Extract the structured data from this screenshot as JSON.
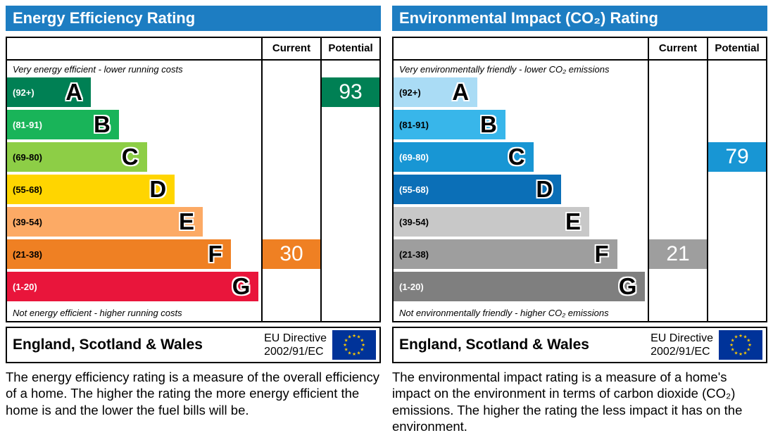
{
  "colors": {
    "header_bg": "#1d7dc2",
    "header_text": "#ffffff",
    "border": "#000000",
    "eu_flag_bg": "#003399",
    "eu_star": "#ffcc00"
  },
  "chart_data": [
    {
      "type": "bar",
      "title": "Energy Efficiency Rating",
      "columns": {
        "current_label": "Current",
        "potential_label": "Potential"
      },
      "caption_top": "Very energy efficient - lower running costs",
      "caption_bottom": "Not energy efficient - higher running costs",
      "bands": [
        {
          "letter": "A",
          "range": "(92+)",
          "color": "#008054",
          "width_pct": 33,
          "range_text_color": "#ffffff"
        },
        {
          "letter": "B",
          "range": "(81-91)",
          "color": "#19b459",
          "width_pct": 44,
          "range_text_color": "#ffffff"
        },
        {
          "letter": "C",
          "range": "(69-80)",
          "color": "#8dce46",
          "width_pct": 55,
          "range_text_color": "#000000"
        },
        {
          "letter": "D",
          "range": "(55-68)",
          "color": "#ffd500",
          "width_pct": 66,
          "range_text_color": "#000000"
        },
        {
          "letter": "E",
          "range": "(39-54)",
          "color": "#fcaa65",
          "width_pct": 77,
          "range_text_color": "#000000"
        },
        {
          "letter": "F",
          "range": "(21-38)",
          "color": "#ef8023",
          "width_pct": 88,
          "range_text_color": "#000000"
        },
        {
          "letter": "G",
          "range": "(1-20)",
          "color": "#e9153b",
          "width_pct": 99,
          "range_text_color": "#ffffff"
        }
      ],
      "current": {
        "value": "30",
        "band": "F"
      },
      "potential": {
        "value": "93",
        "band": "A"
      },
      "footer": {
        "region": "England, Scotland & Wales",
        "directive_line1": "EU Directive",
        "directive_line2": "2002/91/EC"
      },
      "description": "The energy efficiency rating is a measure of the overall efficiency of a home. The higher the rating the more energy efficient the home is and the lower the fuel bills will be."
    },
    {
      "type": "bar",
      "title": "Environmental Impact (CO₂) Rating",
      "columns": {
        "current_label": "Current",
        "potential_label": "Potential"
      },
      "caption_top": "Very environmentally friendly - lower CO₂ emissions",
      "caption_bottom": "Not environmentally friendly - higher CO₂ emissions",
      "bands": [
        {
          "letter": "A",
          "range": "(92+)",
          "color": "#aadcf5",
          "width_pct": 33,
          "range_text_color": "#000000"
        },
        {
          "letter": "B",
          "range": "(81-91)",
          "color": "#38b6ea",
          "width_pct": 44,
          "range_text_color": "#000000"
        },
        {
          "letter": "C",
          "range": "(69-80)",
          "color": "#1896d4",
          "width_pct": 55,
          "range_text_color": "#ffffff"
        },
        {
          "letter": "D",
          "range": "(55-68)",
          "color": "#0b6fb7",
          "width_pct": 66,
          "range_text_color": "#ffffff"
        },
        {
          "letter": "E",
          "range": "(39-54)",
          "color": "#c8c8c8",
          "width_pct": 77,
          "range_text_color": "#000000"
        },
        {
          "letter": "F",
          "range": "(21-38)",
          "color": "#9e9e9e",
          "width_pct": 88,
          "range_text_color": "#000000"
        },
        {
          "letter": "G",
          "range": "(1-20)",
          "color": "#7f7f7f",
          "width_pct": 99,
          "range_text_color": "#ffffff"
        }
      ],
      "current": {
        "value": "21",
        "band": "F"
      },
      "potential": {
        "value": "79",
        "band": "C"
      },
      "footer": {
        "region": "England, Scotland & Wales",
        "directive_line1": "EU Directive",
        "directive_line2": "2002/91/EC"
      },
      "description": "The environmental impact rating is a measure of a home's impact on the environment in terms of carbon dioxide (CO₂) emissions. The higher the rating the less impact it has on the environment."
    }
  ]
}
